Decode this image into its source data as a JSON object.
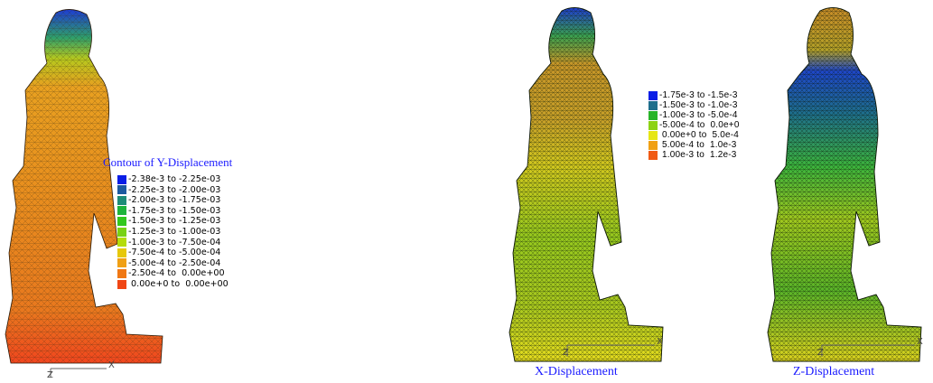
{
  "panels": [
    {
      "name": "y-displacement",
      "legend_title": "Contour of Y-Displacement",
      "caption": "",
      "legend": [
        {
          "label": "-2.38e-3 to -2.25e-03",
          "color": "#0a1ee6"
        },
        {
          "label": "-2.25e-3 to -2.00e-03",
          "color": "#1e5aa0"
        },
        {
          "label": "-2.00e-3 to -1.75e-03",
          "color": "#1e8c78"
        },
        {
          "label": "-1.75e-3 to -1.50e-03",
          "color": "#1eb43c"
        },
        {
          "label": "-1.50e-3 to -1.25e-03",
          "color": "#32c81e"
        },
        {
          "label": "-1.25e-3 to -1.00e-03",
          "color": "#78d214"
        },
        {
          "label": "-1.00e-3 to -7.50e-04",
          "color": "#b4dc0a"
        },
        {
          "label": "-7.50e-4 to -5.00e-04",
          "color": "#e6c80a"
        },
        {
          "label": "-5.00e-4 to -2.50e-04",
          "color": "#f0a014"
        },
        {
          "label": "-2.50e-4 to  0.00e+00",
          "color": "#f07814"
        },
        {
          "label": " 0.00e+0 to  0.00e+00",
          "color": "#f04614"
        }
      ],
      "axes": {
        "x": "X",
        "z": "Z"
      }
    },
    {
      "name": "x-displacement",
      "legend_title": "",
      "caption": "X-Displacement",
      "legend": [
        {
          "label": "-1.75e-3 to -1.5e-3",
          "color": "#0a1ee6"
        },
        {
          "label": "-1.50e-3 to -1.0e-3",
          "color": "#1e6e8c"
        },
        {
          "label": "-1.00e-3 to -5.0e-4",
          "color": "#28b428"
        },
        {
          "label": "-5.00e-4 to  0.0e+0",
          "color": "#8cd214"
        },
        {
          "label": " 0.00e+0 to  5.0e-4",
          "color": "#e6e614"
        },
        {
          "label": " 5.00e-4 to  1.0e-3",
          "color": "#f0a014"
        },
        {
          "label": " 1.00e-3 to  1.2e-3",
          "color": "#f05a14"
        }
      ],
      "axes": {
        "x": "X",
        "z": "Z"
      }
    },
    {
      "name": "z-displacement",
      "legend_title": "",
      "caption": "Z-Displacement",
      "legend": [],
      "axes": {
        "x": "X",
        "z": "Z"
      }
    }
  ]
}
